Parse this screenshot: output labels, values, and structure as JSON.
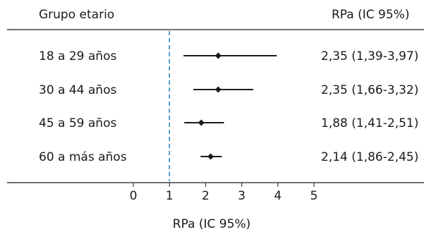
{
  "chart_data": {
    "type": "scatter",
    "subtype": "forest-plot",
    "left_header": "Grupo etario",
    "right_header": "RPa (IC 95%)",
    "xlabel": "RPa (IC 95%)",
    "xlim": [
      0,
      5
    ],
    "x_ticks": [
      "0",
      "1",
      "2",
      "3",
      "4",
      "5"
    ],
    "reference_line": 1,
    "rows": [
      {
        "label": "18 a 29 años",
        "estimate": 2.35,
        "lower": 1.39,
        "upper": 3.97,
        "ci_text": "2,35 (1,39-3,97)"
      },
      {
        "label": "30 a 44 años",
        "estimate": 2.35,
        "lower": 1.66,
        "upper": 3.32,
        "ci_text": "2,35 (1,66-3,32)"
      },
      {
        "label": "45 a 59 años",
        "estimate": 1.88,
        "lower": 1.41,
        "upper": 2.51,
        "ci_text": "1,88 (1,41-2,51)"
      },
      {
        "label": "60 a más años",
        "estimate": 2.14,
        "lower": 1.86,
        "upper": 2.45,
        "ci_text": "2,14 (1,86-2,45)"
      }
    ],
    "colors": {
      "text": "#1a1a1a",
      "marks": "#1a1a1a",
      "reference_line": "#2f88c0"
    }
  }
}
